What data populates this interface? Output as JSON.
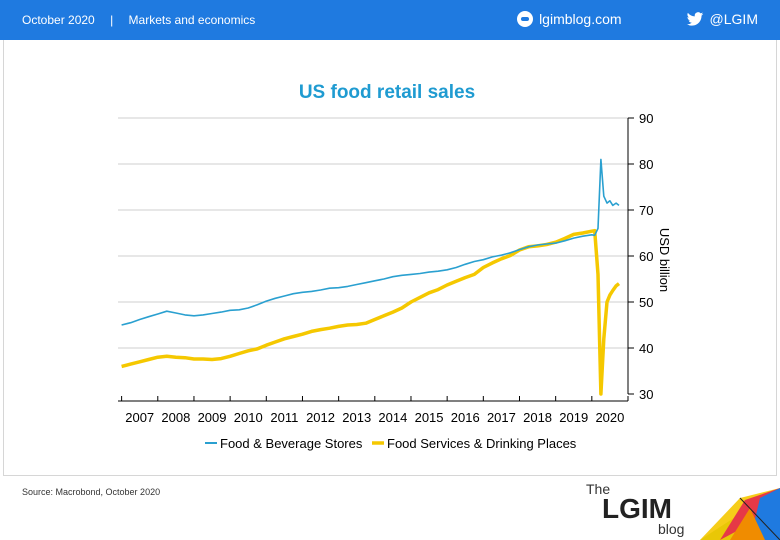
{
  "header": {
    "date": "October 2020",
    "section": "Markets and economics",
    "site": "lgimblog.com",
    "twitter": "@LGIM",
    "separator": "|"
  },
  "footer": {
    "source": "Source: Macrobond, October 2020",
    "logo_the": "The",
    "logo_main": "LGIM",
    "logo_blog": "blog"
  },
  "colors": {
    "header_bg": "#1f7ae0",
    "title": "#1f9bd1",
    "food_beverage": "#2aa0d0",
    "food_services": "#f5c800"
  },
  "chart_data": {
    "type": "line",
    "title": "US food retail sales",
    "ylabel": "USD billion",
    "ylim": [
      30,
      90
    ],
    "yticks": [
      30,
      40,
      50,
      60,
      70,
      80,
      90
    ],
    "xlim": [
      2006.9,
      2021
    ],
    "xticks": [
      "2007",
      "2008",
      "2009",
      "2010",
      "2011",
      "2012",
      "2013",
      "2014",
      "2015",
      "2016",
      "2017",
      "2018",
      "2019",
      "2020"
    ],
    "grid": true,
    "legend": "bottom",
    "series": [
      {
        "name": "Food & Beverage Stores",
        "color": "#2aa0d0",
        "x": [
          2007.0,
          2007.25,
          2007.5,
          2007.75,
          2008.0,
          2008.25,
          2008.5,
          2008.75,
          2009.0,
          2009.25,
          2009.5,
          2009.75,
          2010.0,
          2010.25,
          2010.5,
          2010.75,
          2011.0,
          2011.25,
          2011.5,
          2011.75,
          2012.0,
          2012.25,
          2012.5,
          2012.75,
          2013.0,
          2013.25,
          2013.5,
          2013.75,
          2014.0,
          2014.25,
          2014.5,
          2014.75,
          2015.0,
          2015.25,
          2015.5,
          2015.75,
          2016.0,
          2016.25,
          2016.5,
          2016.75,
          2017.0,
          2017.25,
          2017.5,
          2017.75,
          2018.0,
          2018.25,
          2018.5,
          2018.75,
          2019.0,
          2019.25,
          2019.5,
          2019.75,
          2020.0,
          2020.08,
          2020.17,
          2020.25,
          2020.33,
          2020.42,
          2020.5,
          2020.58,
          2020.67,
          2020.75
        ],
        "values": [
          45,
          45.5,
          46.2,
          46.8,
          47.4,
          48,
          47.6,
          47.2,
          47,
          47.2,
          47.5,
          47.8,
          48.2,
          48.3,
          48.7,
          49.4,
          50.2,
          50.8,
          51.3,
          51.8,
          52.1,
          52.3,
          52.6,
          53,
          53.1,
          53.4,
          53.8,
          54.2,
          54.6,
          55,
          55.5,
          55.8,
          56,
          56.2,
          56.5,
          56.7,
          57,
          57.5,
          58.2,
          58.8,
          59.2,
          59.8,
          60.2,
          60.7,
          61.4,
          62,
          62.4,
          62.6,
          62.8,
          63.3,
          63.9,
          64.3,
          64.6,
          64.5,
          66,
          81,
          73,
          71.5,
          72,
          71,
          71.5,
          71
        ]
      },
      {
        "name": "Food Services & Drinking Places",
        "color": "#f5c800",
        "x": [
          2007.0,
          2007.25,
          2007.5,
          2007.75,
          2008.0,
          2008.25,
          2008.5,
          2008.75,
          2009.0,
          2009.25,
          2009.5,
          2009.75,
          2010.0,
          2010.25,
          2010.5,
          2010.75,
          2011.0,
          2011.25,
          2011.5,
          2011.75,
          2012.0,
          2012.25,
          2012.5,
          2012.75,
          2013.0,
          2013.25,
          2013.5,
          2013.75,
          2014.0,
          2014.25,
          2014.5,
          2014.75,
          2015.0,
          2015.25,
          2015.5,
          2015.75,
          2016.0,
          2016.25,
          2016.5,
          2016.75,
          2017.0,
          2017.25,
          2017.5,
          2017.75,
          2018.0,
          2018.25,
          2018.5,
          2018.75,
          2019.0,
          2019.25,
          2019.5,
          2019.75,
          2020.0,
          2020.08,
          2020.17,
          2020.25,
          2020.33,
          2020.42,
          2020.5,
          2020.58,
          2020.67,
          2020.75
        ],
        "values": [
          36,
          36.5,
          37,
          37.5,
          38,
          38.2,
          38,
          37.9,
          37.6,
          37.6,
          37.5,
          37.7,
          38.2,
          38.8,
          39.4,
          39.8,
          40.6,
          41.3,
          42,
          42.5,
          43,
          43.6,
          44,
          44.3,
          44.7,
          45,
          45.1,
          45.4,
          46.2,
          47,
          47.8,
          48.7,
          50,
          51,
          52,
          52.7,
          53.7,
          54.5,
          55.3,
          56,
          57.5,
          58.5,
          59.4,
          60.1,
          61.3,
          62,
          62.2,
          62.5,
          63,
          63.8,
          64.7,
          65,
          65.4,
          65.5,
          56,
          30,
          42,
          50,
          51.5,
          52.5,
          53.5,
          54
        ]
      }
    ]
  }
}
